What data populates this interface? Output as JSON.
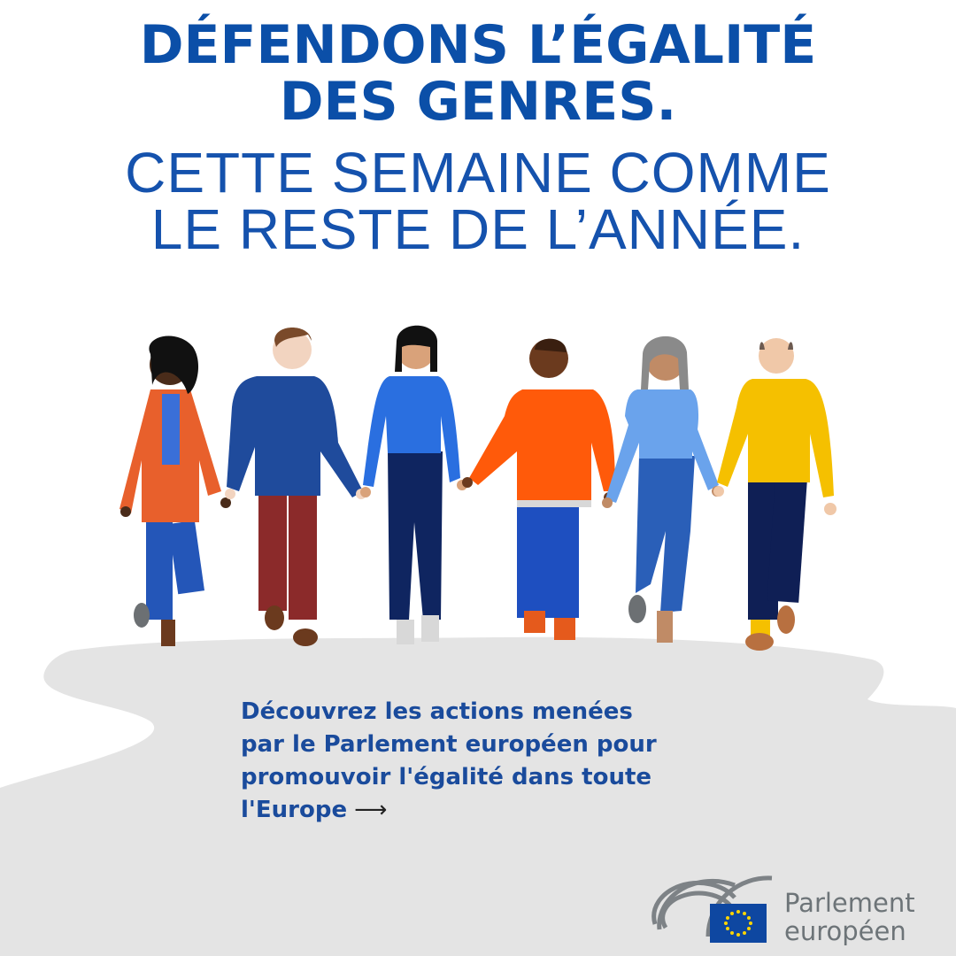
{
  "headline": {
    "line1": "DÉFENDONS L’ÉGALITÉ",
    "line2": "DES GENRES."
  },
  "subheadline": {
    "line1": "CETTE SEMAINE COMME",
    "line2": "LE RESTE DE L’ANNÉE."
  },
  "body": {
    "lines": [
      "Découvrez les actions menées",
      "par le Parlement européen pour",
      "promouvoir l'égalité dans toute",
      "l'Europe"
    ],
    "arrow_icon": "arrow-right-icon",
    "arrow": "⟶"
  },
  "logo": {
    "line1": "Parlement",
    "line2": "européen",
    "icon": "european-parliament-hemicycle-eu-flag-icon"
  },
  "colors": {
    "headline": "#0b4fa8",
    "body_text": "#1a4b9c",
    "ground": "#e4e4e4",
    "eu_blue": "#0e47a1",
    "eu_star": "#ffd500"
  }
}
